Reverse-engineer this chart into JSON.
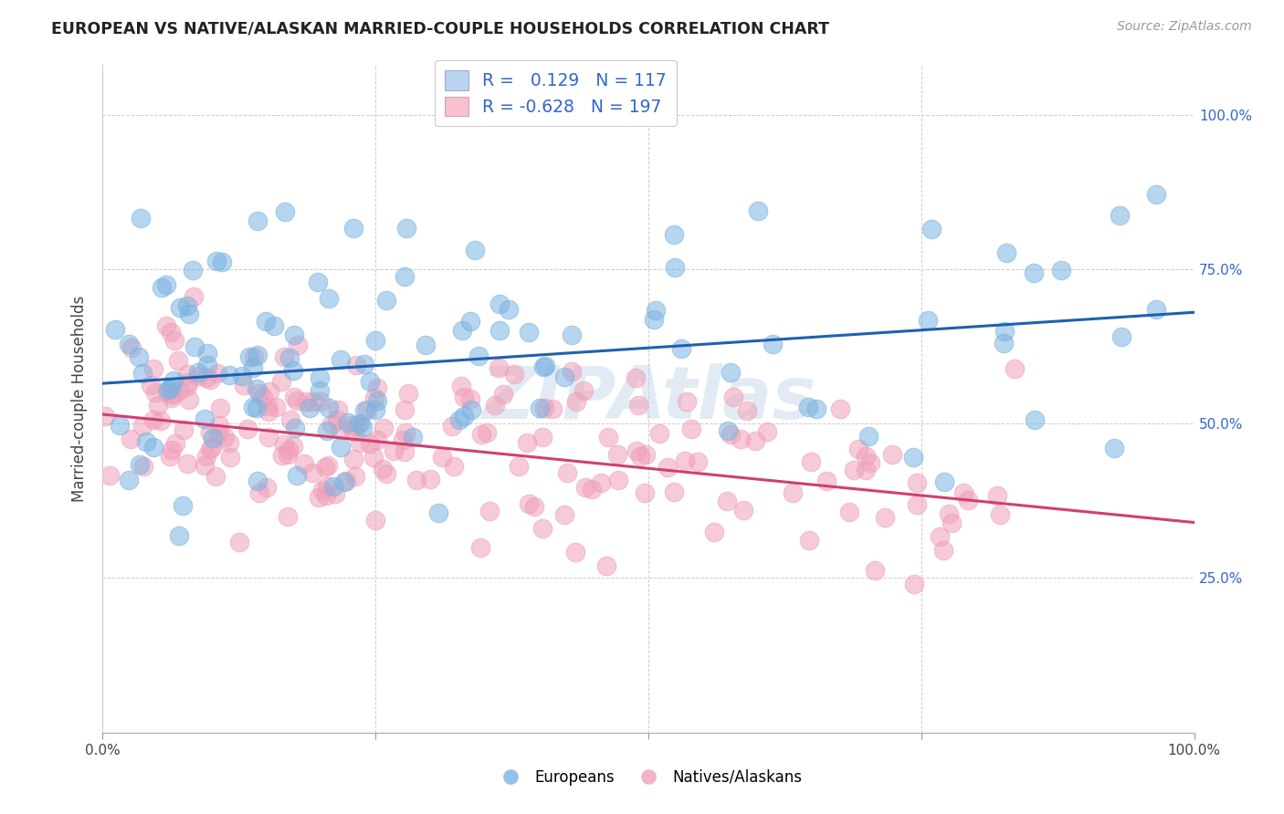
{
  "title": "EUROPEAN VS NATIVE/ALASKAN MARRIED-COUPLE HOUSEHOLDS CORRELATION CHART",
  "source": "Source: ZipAtlas.com",
  "ylabel": "Married-couple Households",
  "blue_color": "#7ab3e0",
  "pink_color": "#f0a0b8",
  "blue_line_color": "#2060b0",
  "pink_line_color": "#d04070",
  "watermark_color": "#c0d4e8",
  "R_blue": 0.129,
  "N_blue": 117,
  "R_pink": -0.628,
  "N_pink": 197,
  "blue_intercept": 0.565,
  "blue_slope": 0.115,
  "pink_intercept": 0.515,
  "pink_slope": -0.175,
  "legend_blue_fill": "#b8d4f0",
  "legend_pink_fill": "#f8c0d0",
  "right_tick_color": "#3366cc",
  "seed_blue": 42,
  "seed_pink": 99
}
